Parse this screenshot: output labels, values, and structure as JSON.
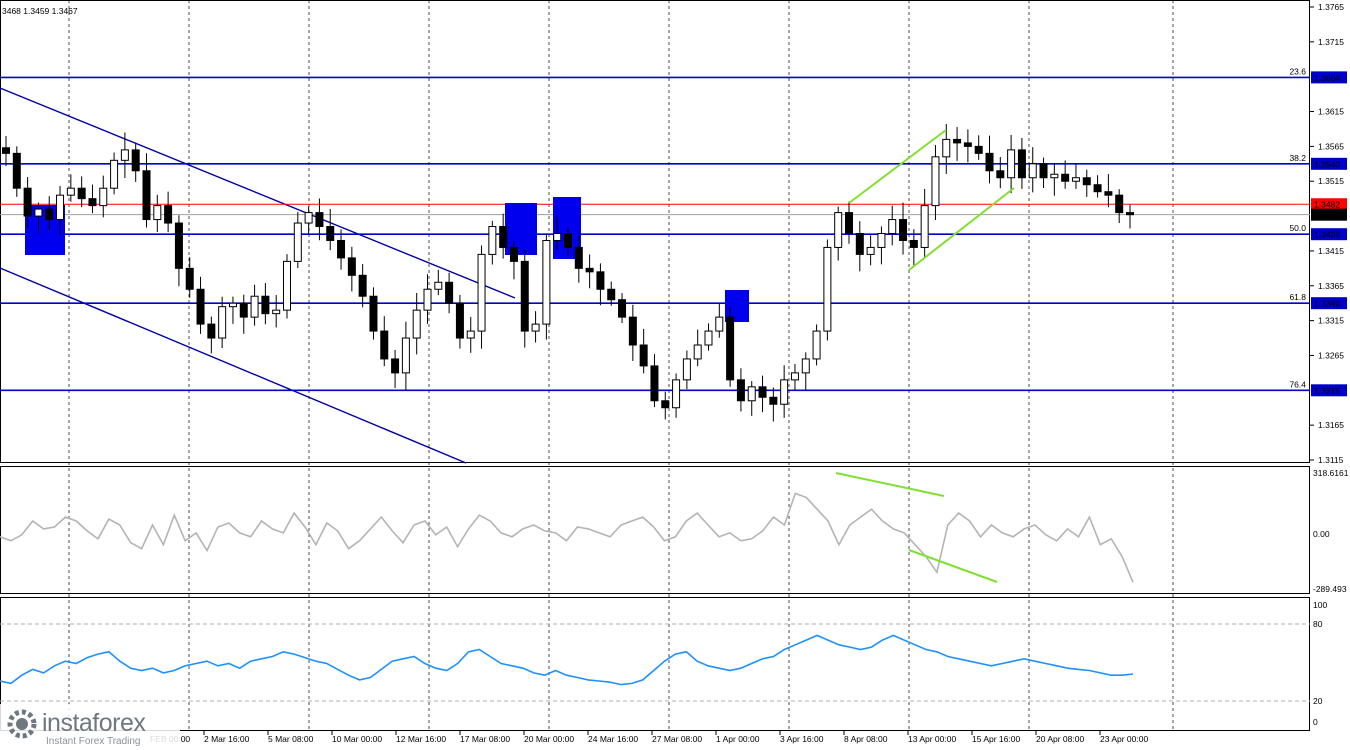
{
  "header": {
    "ohlc_text": "3468 1.3459 1.3467"
  },
  "colors": {
    "candle": "#000000",
    "level_line": "#0000cc",
    "price_line": "#ff0000",
    "bid_line": "#a0a0a0",
    "pattern_line": "#80e030",
    "cci_line": "#b4b4b4",
    "rsi_line": "#1e90ff",
    "box": "#0000ee"
  },
  "chart_data": [
    {
      "type": "candlestick",
      "instrument_note": "price chart, right axis",
      "ylim": [
        1.3115,
        1.3765
      ],
      "y_ticks": [
        "1.3765",
        "1.3715",
        "1.3615",
        "1.3565",
        "1.3515",
        "1.3415",
        "1.3365",
        "1.3315",
        "1.3265",
        "1.3165",
        "1.3115"
      ],
      "x_ticks": [
        "2 Mar 16:00",
        "5 Mar 08:00",
        "10 Mar 00:00",
        "12 Mar 16:00",
        "17 Mar 08:00",
        "20 Mar 00:00",
        "24 Mar 16:00",
        "27 Mar 08:00",
        "1 Apr 00:00",
        "3 Apr 16:00",
        "8 Apr 08:00",
        "13 Apr 00:00",
        "15 Apr 16:00",
        "20 Apr 08:00",
        "23 Apr 00:00"
      ],
      "x_tick_partial": "FEB 00:00",
      "fib_levels": [
        {
          "ratio": "23.6",
          "price": "1.3664"
        },
        {
          "ratio": "38.2",
          "price": "1.3540"
        },
        {
          "ratio": "50.0",
          "price": "1.3439"
        },
        {
          "ratio": "61.8",
          "price": "1.3340"
        },
        {
          "ratio": "76.4",
          "price": "1.3215"
        }
      ],
      "resistance_level": "1.3482",
      "current_price": "1.3467",
      "closes": [
        1.3555,
        1.3505,
        1.3465,
        1.3475,
        1.346,
        1.3495,
        1.3505,
        1.349,
        1.348,
        1.3505,
        1.3545,
        1.356,
        1.353,
        1.346,
        1.348,
        1.3455,
        1.339,
        1.336,
        1.331,
        1.329,
        1.3335,
        1.334,
        1.332,
        1.335,
        1.3325,
        1.333,
        1.34,
        1.3455,
        1.347,
        1.345,
        1.343,
        1.3405,
        1.338,
        1.335,
        1.33,
        1.326,
        1.324,
        1.329,
        1.333,
        1.336,
        1.337,
        1.334,
        1.329,
        1.33,
        1.341,
        1.345,
        1.342,
        1.34,
        1.33,
        1.331,
        1.343,
        1.344,
        1.342,
        1.339,
        1.3385,
        1.336,
        1.3345,
        1.332,
        1.328,
        1.325,
        1.32,
        1.319,
        1.323,
        1.326,
        1.328,
        1.33,
        1.332,
        1.323,
        1.32,
        1.322,
        1.3205,
        1.3195,
        1.323,
        1.324,
        1.326,
        1.33,
        1.342,
        1.347,
        1.344,
        1.341,
        1.342,
        1.344,
        1.346,
        1.343,
        1.342,
        1.348,
        1.355,
        1.3575,
        1.357,
        1.3565,
        1.3555,
        1.353,
        1.352,
        1.356,
        1.352,
        1.354,
        1.352,
        1.3525,
        1.3515,
        1.352,
        1.351,
        1.35,
        1.3495,
        1.347,
        1.3467
      ],
      "markers": [
        "blue boxes",
        "descending channel",
        "green wedge lines"
      ]
    },
    {
      "type": "line",
      "indicator": "CCI",
      "y_ticks": [
        "318.6161",
        "0.00",
        "-289.493"
      ],
      "ylim": [
        -289.493,
        318.6161
      ],
      "values": [
        -20,
        -40,
        -10,
        60,
        20,
        30,
        80,
        60,
        10,
        -30,
        70,
        40,
        -50,
        -80,
        40,
        -60,
        90,
        -40,
        0,
        -90,
        30,
        50,
        0,
        -20,
        60,
        20,
        0,
        100,
        30,
        -60,
        50,
        10,
        -80,
        -40,
        20,
        80,
        10,
        -50,
        40,
        60,
        -10,
        30,
        -70,
        20,
        90,
        60,
        0,
        -20,
        20,
        40,
        10,
        0,
        -40,
        30,
        20,
        0,
        -20,
        40,
        60,
        80,
        30,
        -40,
        -20,
        60,
        100,
        40,
        -20,
        0,
        -40,
        -30,
        10,
        80,
        40,
        200,
        180,
        120,
        60,
        -60,
        40,
        80,
        120,
        60,
        20,
        0,
        -60,
        -120,
        -200,
        40,
        100,
        60,
        -20,
        40,
        0,
        -20,
        20,
        40,
        -10,
        -40,
        20,
        -20,
        80,
        -60,
        -30,
        -120,
        -250
      ]
    },
    {
      "type": "line",
      "indicator": "RSI",
      "y_ticks": [
        "100",
        "80",
        "20",
        "0"
      ],
      "ylim": [
        0,
        100
      ],
      "values": [
        35,
        33,
        40,
        45,
        42,
        48,
        52,
        50,
        55,
        58,
        60,
        52,
        46,
        44,
        46,
        42,
        44,
        48,
        50,
        52,
        48,
        50,
        46,
        52,
        54,
        56,
        60,
        58,
        55,
        52,
        50,
        45,
        40,
        36,
        38,
        45,
        52,
        54,
        56,
        50,
        46,
        44,
        50,
        60,
        62,
        56,
        50,
        48,
        46,
        42,
        40,
        44,
        40,
        38,
        36,
        35,
        34,
        32,
        33,
        36,
        44,
        52,
        58,
        60,
        52,
        48,
        46,
        44,
        46,
        50,
        54,
        56,
        62,
        66,
        70,
        74,
        70,
        66,
        64,
        62,
        64,
        70,
        74,
        70,
        66,
        62,
        60,
        56,
        54,
        52,
        50,
        48,
        50,
        52,
        54,
        52,
        50,
        48,
        46,
        45,
        44,
        42,
        40,
        40,
        41
      ]
    }
  ],
  "logo": {
    "name": "instaforex",
    "tagline": "Instant Forex Trading"
  }
}
